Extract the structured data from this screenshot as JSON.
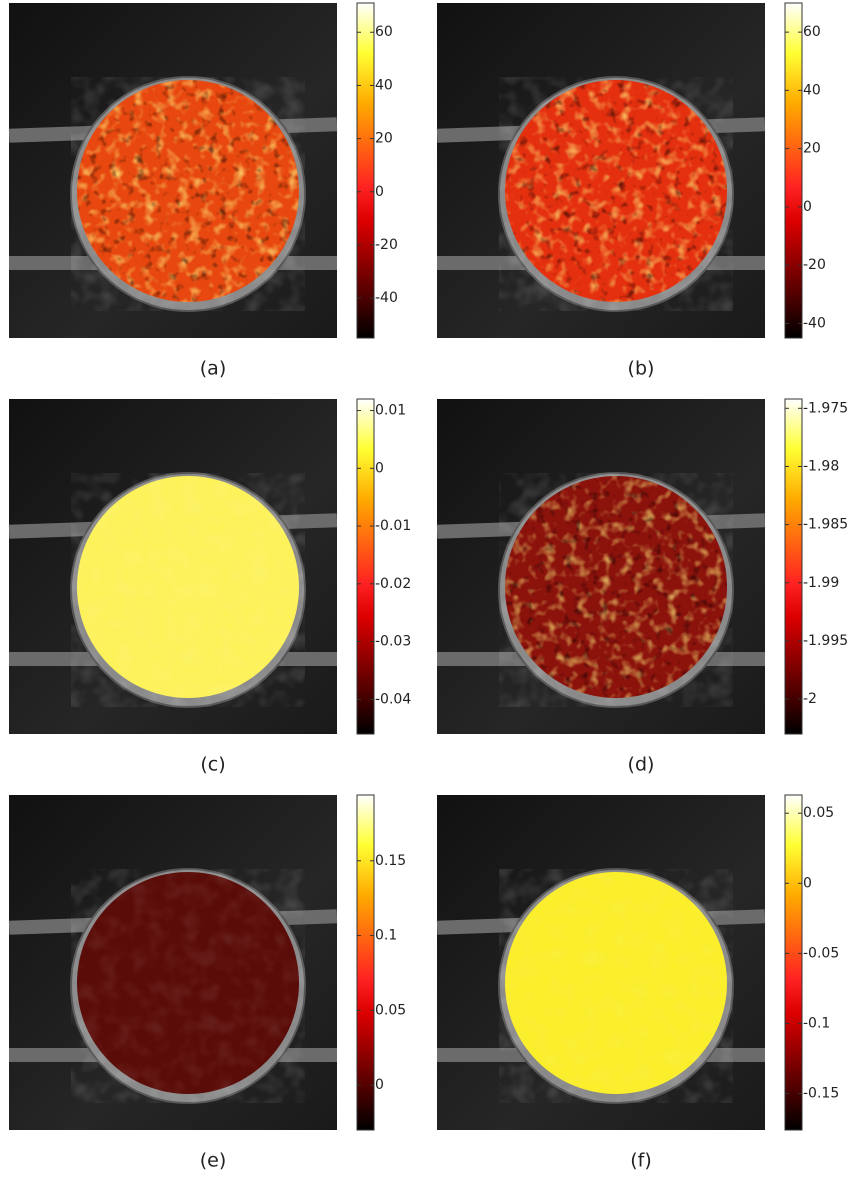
{
  "chart_data": [
    {
      "type": "heatmap",
      "caption": "(a)",
      "color": "#e8480f",
      "texture": true,
      "zlim": [
        -55,
        71
      ],
      "zticks": [
        60,
        40,
        20,
        0,
        -20,
        -40
      ]
    },
    {
      "type": "heatmap",
      "caption": "(b)",
      "color": "#e5300f",
      "texture": true,
      "zlim": [
        -45,
        70
      ],
      "zticks": [
        60,
        40,
        20,
        0,
        -20,
        -40
      ]
    },
    {
      "type": "heatmap",
      "caption": "(c)",
      "color": "#fdf25a",
      "texture": false,
      "zlim": [
        -0.046,
        0.012
      ],
      "zticks": [
        0.01,
        0,
        -0.01,
        -0.02,
        -0.03,
        -0.04
      ]
    },
    {
      "type": "heatmap",
      "caption": "(d)",
      "color": "#8c120c",
      "texture": true,
      "zlim": [
        -2.003,
        -1.9742
      ],
      "zticks": [
        -1.975,
        -1.98,
        -1.985,
        -1.99,
        -1.995,
        -2
      ]
    },
    {
      "type": "heatmap",
      "caption": "(e)",
      "color": "#5a0c08",
      "texture": false,
      "zlim": [
        -0.03,
        0.194
      ],
      "zticks": [
        0.15,
        0.1,
        0.05,
        0
      ]
    },
    {
      "type": "heatmap",
      "caption": "(f)",
      "color": "#fbee2a",
      "texture": false,
      "zlim": [
        -0.176,
        0.063
      ],
      "zticks": [
        0.05,
        0,
        -0.05,
        -0.1,
        -0.15
      ]
    }
  ]
}
